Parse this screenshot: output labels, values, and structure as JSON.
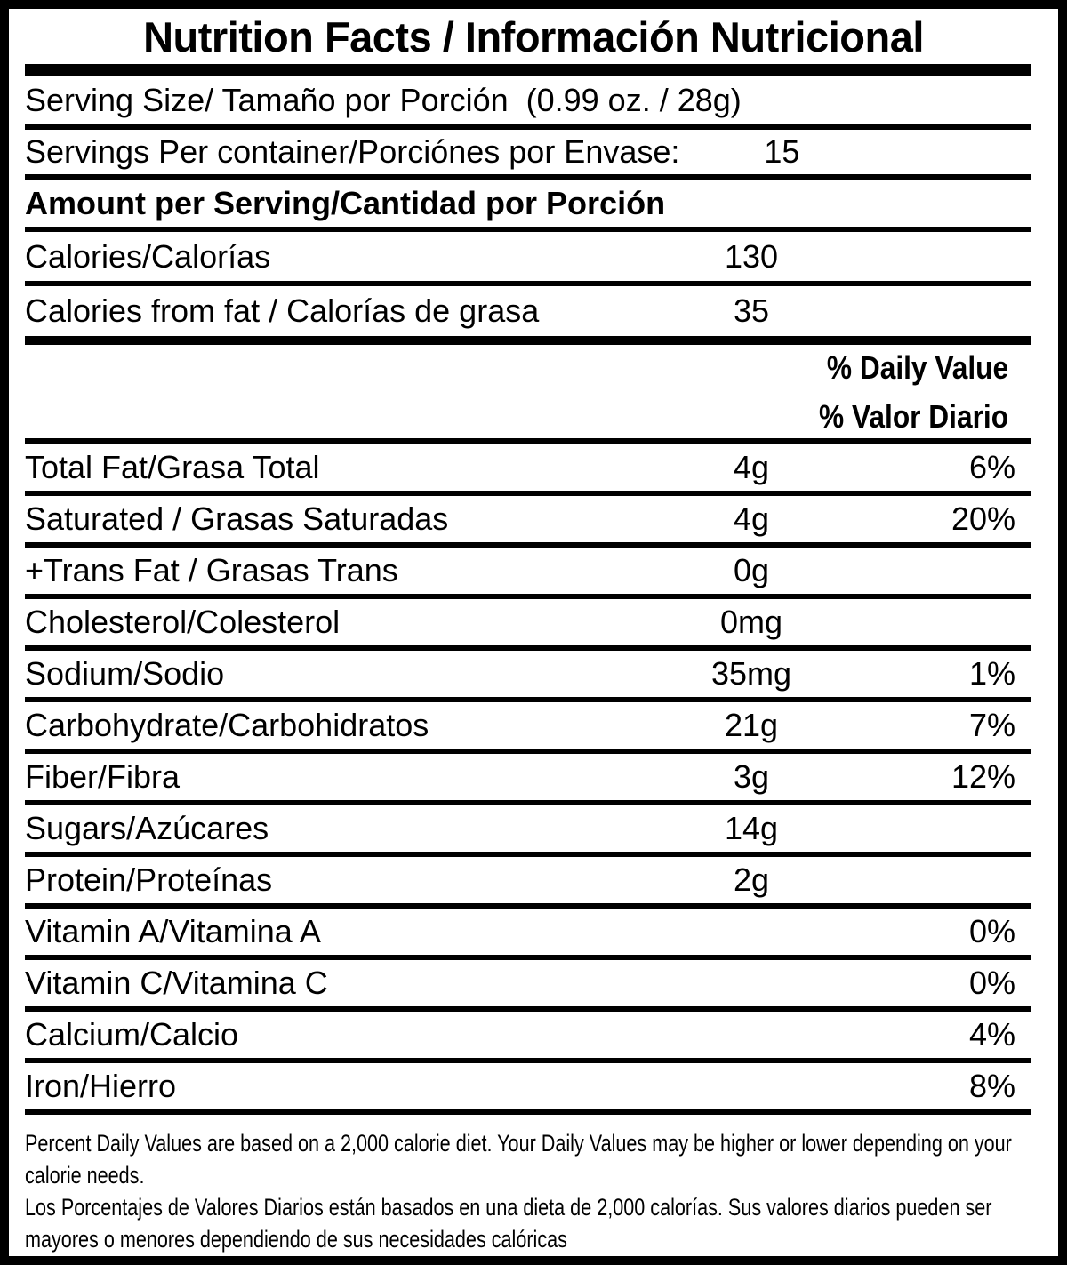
{
  "title": "Nutrition Facts / Información Nutricional",
  "colors": {
    "background": "#ffffff",
    "ink": "#000000"
  },
  "table": {
    "serving_size": {
      "label": "Serving Size/ Tamaño por Porción  (0.99 oz. / 28g)"
    },
    "servings_per_container": {
      "label": "Servings Per container/Porciónes por Envase:",
      "value": "15"
    },
    "amount_per_serving": {
      "label": "Amount per Serving/Cantidad por Porción"
    },
    "calories": {
      "label": "Calories/Calorías",
      "value": "130"
    },
    "calories_from_fat": {
      "label": "Calories from fat / Calorías de grasa",
      "value": "35"
    },
    "daily_value_header": {
      "en": "% Daily Value",
      "es": "% Valor Diario"
    },
    "nutrients": [
      {
        "label": "Total Fat/Grasa Total",
        "value": "4g",
        "pct": "6%"
      },
      {
        "label": "Saturated / Grasas Saturadas",
        "value": "4g",
        "pct": "20%"
      },
      {
        "label": "+Trans Fat / Grasas Trans",
        "value": "0g",
        "pct": ""
      },
      {
        "label": "Cholesterol/Colesterol",
        "value": "0mg",
        "pct": ""
      },
      {
        "label": "Sodium/Sodio",
        "value": "35mg",
        "pct": "1%"
      },
      {
        "label": "Carbohydrate/Carbohidratos",
        "value": "21g",
        "pct": "7%"
      },
      {
        "label": "Fiber/Fibra",
        "value": "3g",
        "pct": "12%"
      },
      {
        "label": "Sugars/Azúcares",
        "value": "14g",
        "pct": ""
      },
      {
        "label": "Protein/Proteínas",
        "value": "2g",
        "pct": ""
      },
      {
        "label": "Vitamin A/Vitamina A",
        "value": "",
        "pct": "0%"
      },
      {
        "label": "Vitamin C/Vitamina C",
        "value": "",
        "pct": "0%"
      },
      {
        "label": "Calcium/Calcio",
        "value": "",
        "pct": "4%"
      },
      {
        "label": "Iron/Hierro",
        "value": "",
        "pct": "8%"
      }
    ],
    "footnote_en": "Percent Daily Values are based on a 2,000 calorie diet. Your Daily Values may be higher or lower depending on your calorie needs.",
    "footnote_es": "Los Porcentajes de Valores Diarios están basados en una dieta de 2,000 calorías. Sus valores diarios pueden ser mayores o menores dependiendo de sus necesidades calóricas"
  }
}
